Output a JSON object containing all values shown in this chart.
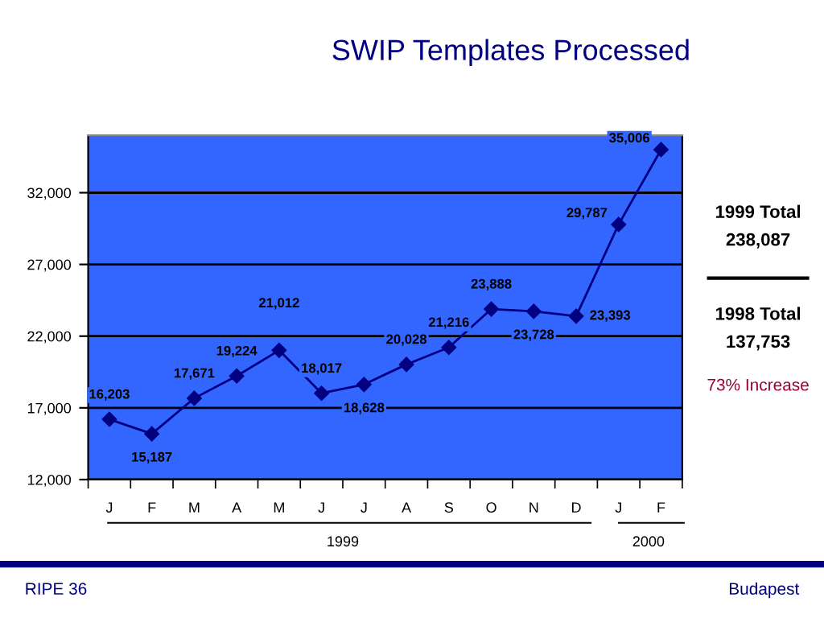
{
  "chart_data": {
    "type": "line",
    "title": "SWIP Templates Processed",
    "categories": [
      "J",
      "F",
      "M",
      "A",
      "M",
      "J",
      "J",
      "A",
      "S",
      "O",
      "N",
      "D",
      "J",
      "F"
    ],
    "series": [
      {
        "color": "#000080",
        "values": [
          16203,
          15187,
          17671,
          19224,
          21012,
          18017,
          18628,
          20028,
          21216,
          23888,
          23728,
          23393,
          29787,
          35006
        ]
      }
    ],
    "value_labels": [
      "16,203",
      "15,187",
      "17,671",
      "19,224",
      "21,012",
      "18,017",
      "18,628",
      "20,028",
      "21,216",
      "23,888",
      "23,728",
      "23,393",
      "29,787",
      "35,006"
    ],
    "ylim": [
      12000,
      36000
    ],
    "yticks": [
      {
        "value": 12000,
        "label": "12,000"
      },
      {
        "value": 17000,
        "label": "17,000"
      },
      {
        "value": 22000,
        "label": "22,000"
      },
      {
        "value": 27000,
        "label": "27,000"
      },
      {
        "value": 32000,
        "label": "32,000"
      }
    ],
    "grid": "y",
    "marker": "diamond",
    "line_style": "solid",
    "annotations": [
      "1999",
      "2000",
      "1999 Total",
      "238,087",
      "1998 Total",
      "137,753",
      "73% Increase",
      "RIPE 36",
      "Budapest"
    ]
  }
}
